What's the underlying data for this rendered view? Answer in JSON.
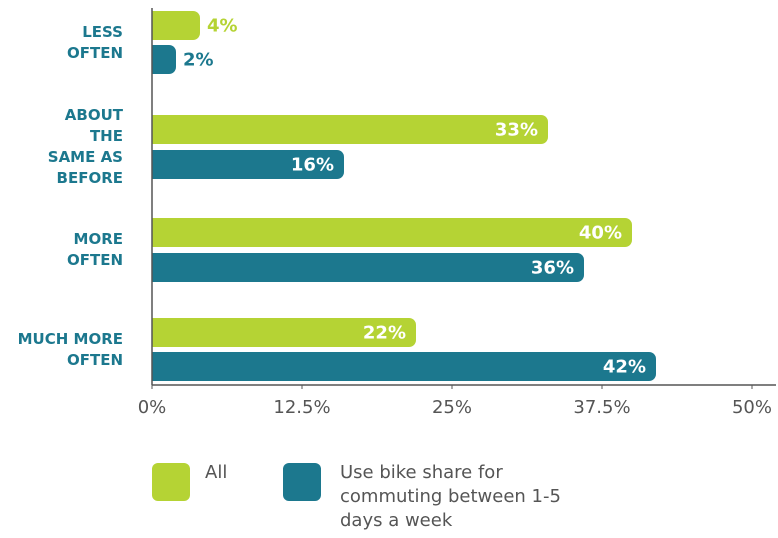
{
  "chart_data": {
    "type": "bar",
    "orientation": "horizontal",
    "categories": [
      "LESS OFTEN",
      "ABOUT THE SAME AS BEFORE",
      "MORE OFTEN",
      "MUCH MORE OFTEN"
    ],
    "series": [
      {
        "name": "All",
        "color": "#b5d334",
        "values": [
          4,
          33,
          40,
          22
        ],
        "value_labels": [
          "4%",
          "33%",
          "40%",
          "22%"
        ]
      },
      {
        "name": "Use bike share for commuting between 1-5 days a week",
        "color": "#1c788e",
        "values": [
          2,
          16,
          36,
          42
        ],
        "value_labels": [
          "2%",
          "16%",
          "36%",
          "42%"
        ]
      }
    ],
    "xlim": [
      0,
      50
    ],
    "xticks": [
      {
        "value": 0,
        "label": "0%"
      },
      {
        "value": 12.5,
        "label": "12.5%"
      },
      {
        "value": 25,
        "label": "25%"
      },
      {
        "value": 37.5,
        "label": "37.5%"
      },
      {
        "value": 50,
        "label": "50%"
      }
    ]
  }
}
